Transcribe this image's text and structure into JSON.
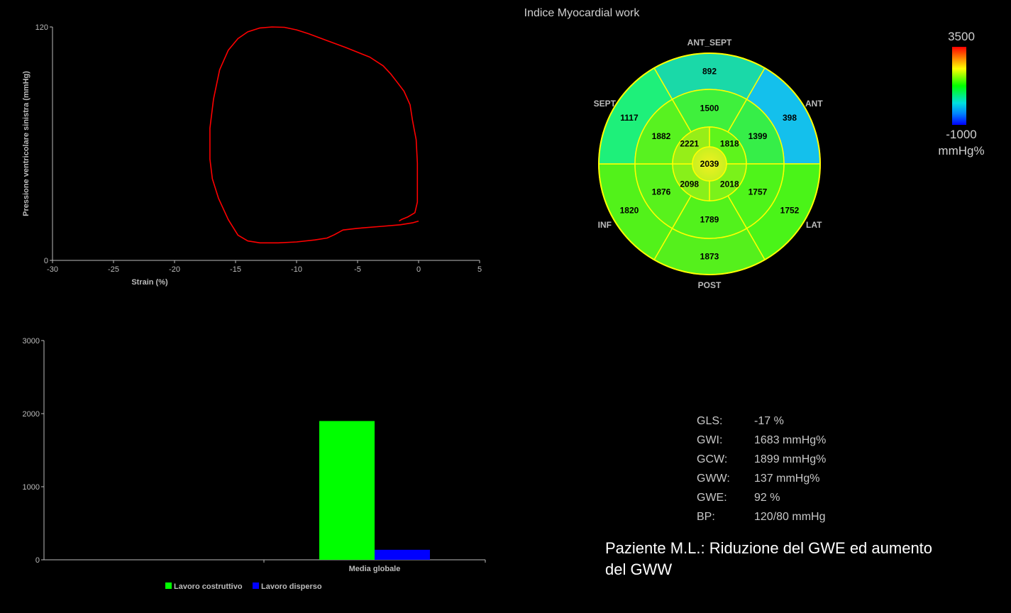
{
  "title": "Indice Myocardial work",
  "loop_chart": {
    "type": "line",
    "ylabel": "Pressione ventricolare sinistra (mmHg)",
    "xlabel": "Strain (%)",
    "xlim": [
      -30,
      5
    ],
    "ylim": [
      0,
      120
    ],
    "xticks": [
      "-30",
      "-25",
      "-20",
      "-15",
      "-10",
      "-5",
      "0",
      "5"
    ],
    "yticks": [
      "0",
      "120"
    ],
    "color": "#ff0000",
    "points": [
      [
        -1.6,
        20.2
      ],
      [
        -1.4,
        21
      ],
      [
        -0.9,
        22.3
      ],
      [
        -0.3,
        24.5
      ],
      [
        -0.1,
        30
      ],
      [
        -0.1,
        50
      ],
      [
        -0.2,
        62
      ],
      [
        -0.5,
        72
      ],
      [
        -0.7,
        80
      ],
      [
        -1.2,
        87
      ],
      [
        -1.8,
        92
      ],
      [
        -2.3,
        96
      ],
      [
        -2.9,
        100
      ],
      [
        -4,
        104.5
      ],
      [
        -6,
        109.5
      ],
      [
        -7.5,
        113
      ],
      [
        -9,
        116.5
      ],
      [
        -10,
        118.5
      ],
      [
        -11,
        119.8
      ],
      [
        -12,
        120
      ],
      [
        -13,
        119.5
      ],
      [
        -14,
        117.5
      ],
      [
        -14.8,
        114
      ],
      [
        -15.6,
        108
      ],
      [
        -16.3,
        98
      ],
      [
        -16.8,
        83
      ],
      [
        -17.1,
        68
      ],
      [
        -17.1,
        52
      ],
      [
        -16.9,
        42
      ],
      [
        -16.4,
        32
      ],
      [
        -15.6,
        21
      ],
      [
        -14.8,
        13
      ],
      [
        -14,
        10
      ],
      [
        -13,
        9
      ],
      [
        -11.5,
        9
      ],
      [
        -10,
        9.5
      ],
      [
        -8.5,
        10.5
      ],
      [
        -7.5,
        11.5
      ],
      [
        -6.9,
        13.2
      ],
      [
        -6.2,
        15.6
      ],
      [
        -5,
        16.5
      ],
      [
        -3,
        17.5
      ],
      [
        -1.5,
        18.3
      ],
      [
        -0.5,
        19.3
      ],
      [
        0,
        20.2
      ]
    ]
  },
  "bullseye": {
    "labels": {
      "ant_sept": "ANT_SEPT",
      "ant": "ANT",
      "sept": "SEPT",
      "inf": "INF",
      "lat": "LAT",
      "post": "POST"
    },
    "outer": [
      {
        "segment": "ANT_SEPT",
        "value": "892",
        "color": "#1ad9a8"
      },
      {
        "segment": "ANT",
        "value": "398",
        "color": "#14c0ec"
      },
      {
        "segment": "LAT",
        "value": "1752",
        "color": "#4af418"
      },
      {
        "segment": "POST",
        "value": "1873",
        "color": "#55f01c"
      },
      {
        "segment": "INF",
        "value": "1820",
        "color": "#52f21a"
      },
      {
        "segment": "SEPT",
        "value": "1117",
        "color": "#1ef07a"
      }
    ],
    "middle": [
      {
        "segment": "ANT_SEPT",
        "value": "1500",
        "color": "#3ff03c"
      },
      {
        "segment": "ANT",
        "value": "1399",
        "color": "#36ee48"
      },
      {
        "segment": "LAT",
        "value": "1757",
        "color": "#4ff41a"
      },
      {
        "segment": "POST",
        "value": "1789",
        "color": "#52f21c"
      },
      {
        "segment": "INF",
        "value": "1876",
        "color": "#58f21c"
      },
      {
        "segment": "SEPT",
        "value": "1882",
        "color": "#58f220"
      }
    ],
    "apical": [
      {
        "segment": "ANT",
        "value": "1818",
        "color": "#5ef41c"
      },
      {
        "segment": "LAT",
        "value": "2018",
        "color": "#7af21a"
      },
      {
        "segment": "INF",
        "value": "2098",
        "color": "#88f01a"
      },
      {
        "segment": "SEPT",
        "value": "2221",
        "color": "#96ee18"
      }
    ],
    "apex": {
      "value": "2039",
      "color": "#c8f020"
    }
  },
  "colorbar": {
    "max": "3500",
    "min": "-1000",
    "unit": "mmHg%"
  },
  "bar_chart": {
    "type": "bar",
    "categories": [
      "Media globale"
    ],
    "ylim": [
      0,
      3000
    ],
    "yticks": [
      "0",
      "1000",
      "2000",
      "3000"
    ],
    "series": [
      {
        "name": "Lavoro costruttivo",
        "values": [
          1899
        ],
        "color": "#00ff00"
      },
      {
        "name": "Lavoro disperso",
        "values": [
          137
        ],
        "color": "#0000ff"
      }
    ]
  },
  "metrics": [
    {
      "name": "GLS:",
      "value": "-17 %"
    },
    {
      "name": "GWI:",
      "value": "1683 mmHg%"
    },
    {
      "name": "GCW:",
      "value": "1899 mmHg%"
    },
    {
      "name": "GWW:",
      "value": "137 mmHg%"
    },
    {
      "name": "GWE:",
      "value": "92 %"
    },
    {
      "name": "BP:",
      "value": "120/80 mmHg"
    }
  ],
  "caption": "Paziente M.L.: Riduzione del GWE ed aumento del GWW"
}
